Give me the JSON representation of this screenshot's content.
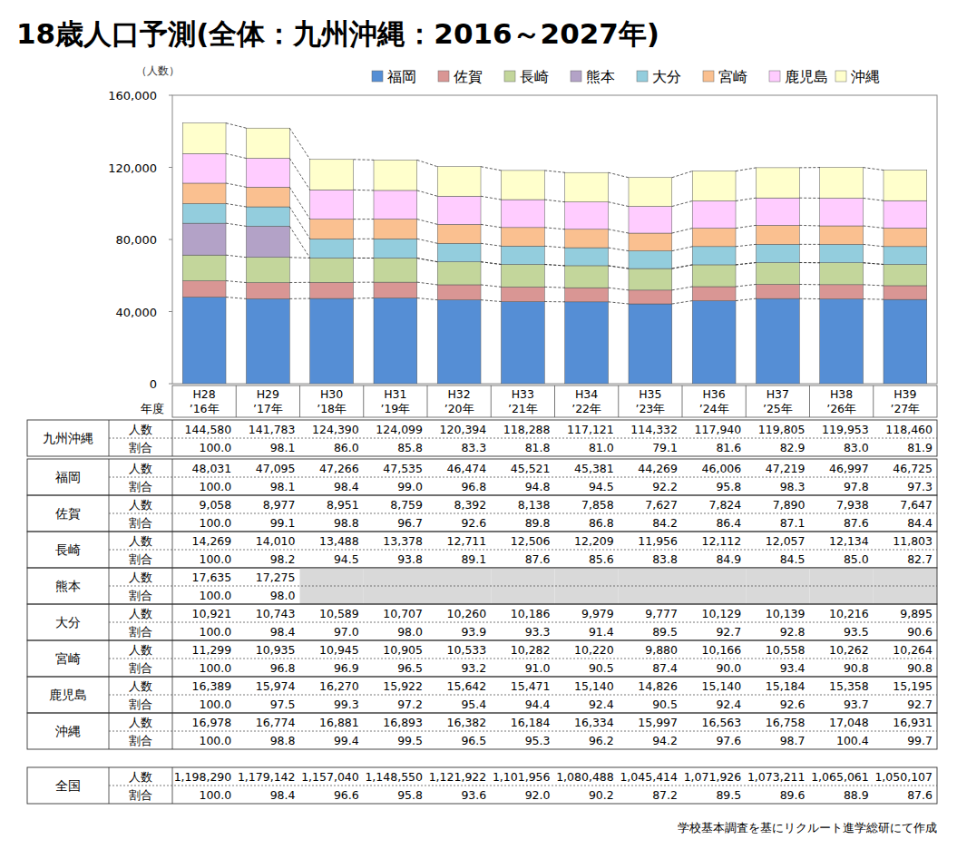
{
  "chart_data": {
    "type": "bar",
    "title": "18歳人口予測(全体：九州沖縄：2016～2027年)",
    "y_label": "（人数）",
    "x_label": "年度",
    "stacked": true,
    "grid": false,
    "legend": "top",
    "categories": [
      "H28\n’16年",
      "H29\n’17年",
      "H30\n’18年",
      "H31\n’19年",
      "H32\n’20年",
      "H33\n’21年",
      "H34\n’22年",
      "H35\n’23年",
      "H36\n’24年",
      "H37\n’25年",
      "H38\n’26年",
      "H39\n’27年"
    ],
    "ylim": [
      0,
      160000
    ],
    "yticks": [
      0,
      {
        "value": 40000,
        "label": "40,000"
      },
      {
        "value": 80000,
        "label": "80,000"
      },
      {
        "value": 120000,
        "label": "120,000"
      },
      {
        "value": 160000,
        "label": "160,000"
      }
    ],
    "series": [
      {
        "name": "福岡",
        "color": "#558ed5",
        "values": [
          48031,
          47095,
          47266,
          47535,
          46474,
          45521,
          45381,
          44269,
          46006,
          47219,
          46997,
          46725
        ]
      },
      {
        "name": "佐賀",
        "color": "#d99694",
        "values": [
          9058,
          8977,
          8951,
          8759,
          8392,
          8138,
          7858,
          7627,
          7824,
          7890,
          7938,
          7647
        ]
      },
      {
        "name": "長崎",
        "color": "#c3d69b",
        "values": [
          14269,
          14010,
          13488,
          13378,
          12711,
          12506,
          12209,
          11956,
          12112,
          12057,
          12134,
          11803
        ]
      },
      {
        "name": "熊本",
        "color": "#b3a2c7",
        "values": [
          17635,
          17275,
          null,
          null,
          null,
          null,
          null,
          null,
          null,
          null,
          null,
          null
        ]
      },
      {
        "name": "大分",
        "color": "#93cddd",
        "values": [
          10921,
          10743,
          10589,
          10707,
          10260,
          10186,
          9979,
          9777,
          10129,
          10139,
          10216,
          9895
        ]
      },
      {
        "name": "宮崎",
        "color": "#fac090",
        "values": [
          11299,
          10935,
          10945,
          10905,
          10533,
          10282,
          10220,
          9880,
          10166,
          10558,
          10262,
          10264
        ]
      },
      {
        "name": "鹿児島",
        "color": "#ffccff",
        "values": [
          16389,
          15974,
          16270,
          15922,
          15642,
          15471,
          15140,
          14826,
          15140,
          15184,
          15358,
          15195
        ]
      },
      {
        "name": "沖縄",
        "color": "#ffffcc",
        "values": [
          16978,
          16774,
          16881,
          16893,
          16382,
          16184,
          16334,
          15997,
          16563,
          16758,
          17048,
          16931
        ]
      }
    ]
  },
  "table": {
    "groups": [
      {
        "name": "九州沖縄",
        "rows": [
          {
            "label": "人数",
            "cells": [
              "144,580",
              "141,783",
              "124,390",
              "124,099",
              "120,394",
              "118,288",
              "117,121",
              "114,332",
              "117,940",
              "119,805",
              "119,953",
              "118,460"
            ]
          },
          {
            "label": "割合",
            "cells": [
              "100.0",
              "98.1",
              "86.0",
              "85.8",
              "83.3",
              "81.8",
              "81.0",
              "79.1",
              "81.6",
              "82.9",
              "83.0",
              "81.9"
            ]
          }
        ]
      },
      {
        "name": "福岡",
        "rows": [
          {
            "label": "人数",
            "cells": [
              "48,031",
              "47,095",
              "47,266",
              "47,535",
              "46,474",
              "45,521",
              "45,381",
              "44,269",
              "46,006",
              "47,219",
              "46,997",
              "46,725"
            ]
          },
          {
            "label": "割合",
            "cells": [
              "100.0",
              "98.1",
              "98.4",
              "99.0",
              "96.8",
              "94.8",
              "94.5",
              "92.2",
              "95.8",
              "98.3",
              "97.8",
              "97.3"
            ]
          }
        ]
      },
      {
        "name": "佐賀",
        "rows": [
          {
            "label": "人数",
            "cells": [
              "9,058",
              "8,977",
              "8,951",
              "8,759",
              "8,392",
              "8,138",
              "7,858",
              "7,627",
              "7,824",
              "7,890",
              "7,938",
              "7,647"
            ]
          },
          {
            "label": "割合",
            "cells": [
              "100.0",
              "99.1",
              "98.8",
              "96.7",
              "92.6",
              "89.8",
              "86.8",
              "84.2",
              "86.4",
              "87.1",
              "87.6",
              "84.4"
            ]
          }
        ]
      },
      {
        "name": "長崎",
        "rows": [
          {
            "label": "人数",
            "cells": [
              "14,269",
              "14,010",
              "13,488",
              "13,378",
              "12,711",
              "12,506",
              "12,209",
              "11,956",
              "12,112",
              "12,057",
              "12,134",
              "11,803"
            ]
          },
          {
            "label": "割合",
            "cells": [
              "100.0",
              "98.2",
              "94.5",
              "93.8",
              "89.1",
              "87.6",
              "85.6",
              "83.8",
              "84.9",
              "84.5",
              "85.0",
              "82.7"
            ]
          }
        ]
      },
      {
        "name": "熊本",
        "rows": [
          {
            "label": "人数",
            "cells": [
              "17,635",
              "17,275",
              null,
              null,
              null,
              null,
              null,
              null,
              null,
              null,
              null,
              null
            ]
          },
          {
            "label": "割合",
            "cells": [
              "100.0",
              "98.0",
              null,
              null,
              null,
              null,
              null,
              null,
              null,
              null,
              null,
              null
            ]
          }
        ]
      },
      {
        "name": "大分",
        "rows": [
          {
            "label": "人数",
            "cells": [
              "10,921",
              "10,743",
              "10,589",
              "10,707",
              "10,260",
              "10,186",
              "9,979",
              "9,777",
              "10,129",
              "10,139",
              "10,216",
              "9,895"
            ]
          },
          {
            "label": "割合",
            "cells": [
              "100.0",
              "98.4",
              "97.0",
              "98.0",
              "93.9",
              "93.3",
              "91.4",
              "89.5",
              "92.7",
              "92.8",
              "93.5",
              "90.6"
            ]
          }
        ]
      },
      {
        "name": "宮崎",
        "rows": [
          {
            "label": "人数",
            "cells": [
              "11,299",
              "10,935",
              "10,945",
              "10,905",
              "10,533",
              "10,282",
              "10,220",
              "9,880",
              "10,166",
              "10,558",
              "10,262",
              "10,264"
            ]
          },
          {
            "label": "割合",
            "cells": [
              "100.0",
              "96.8",
              "96.9",
              "96.5",
              "93.2",
              "91.0",
              "90.5",
              "87.4",
              "90.0",
              "93.4",
              "90.8",
              "90.8"
            ]
          }
        ]
      },
      {
        "name": "鹿児島",
        "rows": [
          {
            "label": "人数",
            "cells": [
              "16,389",
              "15,974",
              "16,270",
              "15,922",
              "15,642",
              "15,471",
              "15,140",
              "14,826",
              "15,140",
              "15,184",
              "15,358",
              "15,195"
            ]
          },
          {
            "label": "割合",
            "cells": [
              "100.0",
              "97.5",
              "99.3",
              "97.2",
              "95.4",
              "94.4",
              "92.4",
              "90.5",
              "92.4",
              "92.6",
              "93.7",
              "92.7"
            ]
          }
        ]
      },
      {
        "name": "沖縄",
        "rows": [
          {
            "label": "人数",
            "cells": [
              "16,978",
              "16,774",
              "16,881",
              "16,893",
              "16,382",
              "16,184",
              "16,334",
              "15,997",
              "16,563",
              "16,758",
              "17,048",
              "16,931"
            ]
          },
          {
            "label": "割合",
            "cells": [
              "100.0",
              "98.8",
              "99.4",
              "99.5",
              "96.5",
              "95.3",
              "96.2",
              "94.2",
              "97.6",
              "98.7",
              "100.4",
              "99.7"
            ]
          }
        ]
      }
    ]
  },
  "national": {
    "name": "全国",
    "rows": [
      {
        "label": "人数",
        "cells": [
          "1,198,290",
          "1,179,142",
          "1,157,040",
          "1,148,550",
          "1,121,922",
          "1,101,956",
          "1,080,488",
          "1,045,414",
          "1,071,926",
          "1,073,211",
          "1,065,061",
          "1,050,107"
        ]
      },
      {
        "label": "割合",
        "cells": [
          "100.0",
          "98.4",
          "96.6",
          "95.8",
          "93.6",
          "92.0",
          "90.2",
          "87.2",
          "89.5",
          "89.6",
          "88.9",
          "87.6"
        ]
      }
    ]
  },
  "source": "学校基本調査を基にリクルート進学総研にて作成"
}
